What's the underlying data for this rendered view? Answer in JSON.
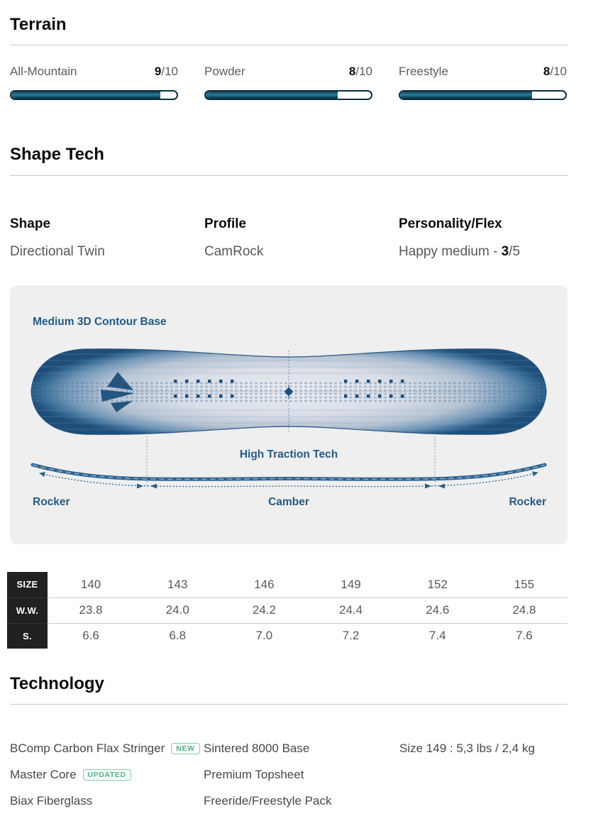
{
  "terrain": {
    "title": "Terrain",
    "ratings": [
      {
        "label": "All-Mountain",
        "value": 9,
        "max": 10,
        "suffix": "/10"
      },
      {
        "label": "Powder",
        "value": 8,
        "max": 10,
        "suffix": "/10"
      },
      {
        "label": "Freestyle",
        "value": 8,
        "max": 10,
        "suffix": "/10"
      }
    ],
    "bar_fill_color": "#1a667f",
    "bar_border_color": "#0d2f42"
  },
  "shape_tech": {
    "title": "Shape Tech",
    "shape": {
      "label": "Shape",
      "value": "Directional Twin"
    },
    "profile": {
      "label": "Profile",
      "value": "CamRock"
    },
    "flex": {
      "label": "Personality/Flex",
      "value_prefix": "Happy medium - ",
      "value_bold": "3",
      "value_suffix": "/5"
    }
  },
  "diagram": {
    "base_label": "Medium 3D Contour Base",
    "traction_label": "High Traction Tech",
    "rocker_left": "Rocker",
    "camber": "Camber",
    "rocker_right": "Rocker",
    "panel_bg": "#efeff0",
    "blue_dark": "#1d4e7c",
    "blue_label": "#255a85"
  },
  "size_table": {
    "rows": [
      {
        "header": "SIZE",
        "values": [
          "140",
          "143",
          "146",
          "149",
          "152",
          "155"
        ]
      },
      {
        "header": "W.W.",
        "values": [
          "23.8",
          "24.0",
          "24.2",
          "24.4",
          "24.6",
          "24.8"
        ]
      },
      {
        "header": "S.",
        "values": [
          "6.6",
          "6.8",
          "7.0",
          "7.2",
          "7.4",
          "7.6"
        ]
      }
    ],
    "header_bg": "#212121"
  },
  "technology": {
    "title": "Technology",
    "badge_color": "#4db383",
    "columns": [
      {
        "items": [
          {
            "text": "BComp Carbon Flax Stringer",
            "badge": "NEW"
          },
          {
            "text": "Master Core",
            "badge": "UPDATED"
          },
          {
            "text": "Biax Fiberglass"
          }
        ]
      },
      {
        "items": [
          {
            "text": "Sintered 8000 Base"
          },
          {
            "text": "Premium Topsheet"
          },
          {
            "text": "Freeride/Freestyle Pack"
          }
        ]
      },
      {
        "items": [
          {
            "text": "Size 149 : 5,3 lbs / 2,4 kg"
          }
        ]
      }
    ]
  }
}
